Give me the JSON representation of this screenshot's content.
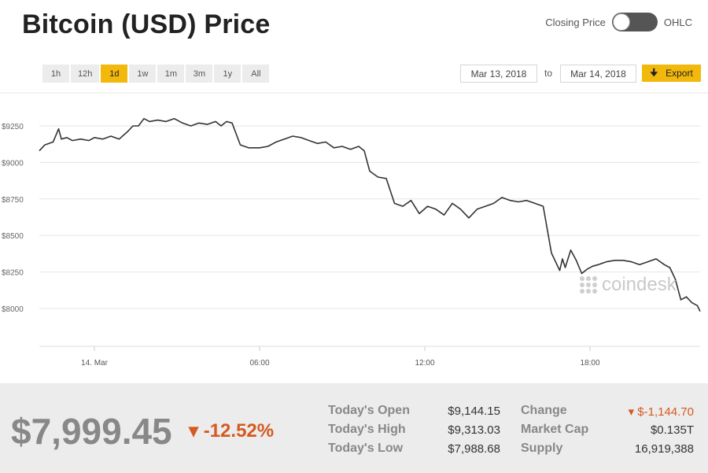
{
  "header": {
    "title": "Bitcoin (USD) Price",
    "toggle_left": "Closing Price",
    "toggle_right": "OHLC"
  },
  "ranges": [
    {
      "label": "1h",
      "active": false
    },
    {
      "label": "12h",
      "active": false
    },
    {
      "label": "1d",
      "active": true
    },
    {
      "label": "1w",
      "active": false
    },
    {
      "label": "1m",
      "active": false
    },
    {
      "label": "3m",
      "active": false
    },
    {
      "label": "1y",
      "active": false
    },
    {
      "label": "All",
      "active": false
    }
  ],
  "date_range": {
    "from": "Mar 13, 2018",
    "to_label": "to",
    "to": "Mar 14, 2018",
    "export_label": "Export"
  },
  "watermark": "coindesk",
  "colors": {
    "accent": "#f2b90c",
    "line": "#333333",
    "negative": "#d55a20"
  },
  "chart_data": {
    "type": "line",
    "title": "",
    "xlabel": "",
    "ylabel": "",
    "x_range_hours": [
      -2,
      22
    ],
    "ylim": [
      7800,
      9400
    ],
    "y_ticks": [
      {
        "value": 8000,
        "label": "$8000"
      },
      {
        "value": 8250,
        "label": "$8250"
      },
      {
        "value": 8500,
        "label": "$8500"
      },
      {
        "value": 8750,
        "label": "$8750"
      },
      {
        "value": 9000,
        "label": "$9000"
      },
      {
        "value": 9250,
        "label": "$9250"
      }
    ],
    "x_ticks": [
      {
        "value": 0,
        "label": "14. Mar"
      },
      {
        "value": 6,
        "label": "06:00"
      },
      {
        "value": 12,
        "label": "12:00"
      },
      {
        "value": 18,
        "label": "18:00"
      }
    ],
    "grid": true,
    "legend": "none",
    "series": [
      {
        "x": [
          -2,
          -1.8,
          -1.5,
          -1.3,
          -1.2,
          -1.0,
          -0.8,
          -0.5,
          -0.2,
          0,
          0.3,
          0.6,
          0.9,
          1.2,
          1.4,
          1.6,
          1.8,
          2.0,
          2.3,
          2.6,
          2.9,
          3.2,
          3.5,
          3.8,
          4.1,
          4.4,
          4.6,
          4.8,
          5.0,
          5.3,
          5.6,
          6.0,
          6.3,
          6.6,
          6.9,
          7.2,
          7.5,
          7.8,
          8.1,
          8.4,
          8.7,
          9.0,
          9.3,
          9.6,
          9.8,
          10.0,
          10.3,
          10.6,
          10.9,
          11.2,
          11.5,
          11.8,
          12.1,
          12.4,
          12.7,
          13.0,
          13.3,
          13.6,
          13.9,
          14.2,
          14.5,
          14.8,
          15.1,
          15.4,
          15.7,
          16.0,
          16.3,
          16.6,
          16.9,
          17.0,
          17.1,
          17.3,
          17.5,
          17.7,
          17.9,
          18.1,
          18.3,
          18.6,
          18.9,
          19.2,
          19.5,
          19.8,
          20.1,
          20.4,
          20.7,
          20.9,
          21.1,
          21.3,
          21.5,
          21.7,
          21.9,
          22.0
        ],
        "y": [
          9080,
          9120,
          9140,
          9230,
          9160,
          9170,
          9150,
          9160,
          9150,
          9170,
          9160,
          9180,
          9160,
          9210,
          9250,
          9250,
          9300,
          9280,
          9290,
          9280,
          9300,
          9270,
          9250,
          9270,
          9260,
          9280,
          9250,
          9280,
          9270,
          9120,
          9100,
          9100,
          9110,
          9140,
          9160,
          9180,
          9170,
          9150,
          9130,
          9140,
          9100,
          9110,
          9090,
          9110,
          9080,
          8940,
          8900,
          8890,
          8720,
          8700,
          8740,
          8650,
          8700,
          8680,
          8640,
          8720,
          8680,
          8620,
          8680,
          8700,
          8720,
          8760,
          8740,
          8730,
          8740,
          8720,
          8700,
          8380,
          8260,
          8340,
          8280,
          8400,
          8330,
          8240,
          8270,
          8290,
          8300,
          8320,
          8330,
          8330,
          8320,
          8300,
          8320,
          8340,
          8300,
          8280,
          8200,
          8060,
          8080,
          8040,
          8020,
          7980
        ]
      }
    ]
  },
  "footer": {
    "price": "$7,999.45",
    "change_pct": "▾ -12.52%",
    "stats_left": [
      {
        "label": "Today's Open",
        "value": "$9,144.15"
      },
      {
        "label": "Today's High",
        "value": "$9,313.03"
      },
      {
        "label": "Today's Low",
        "value": "$7,988.68"
      }
    ],
    "stats_right": [
      {
        "label": "Change",
        "value": "▾ $-1,144.70"
      },
      {
        "label": "Market Cap",
        "value": "$0.135T"
      },
      {
        "label": "Supply",
        "value": "16,919,388"
      }
    ]
  }
}
